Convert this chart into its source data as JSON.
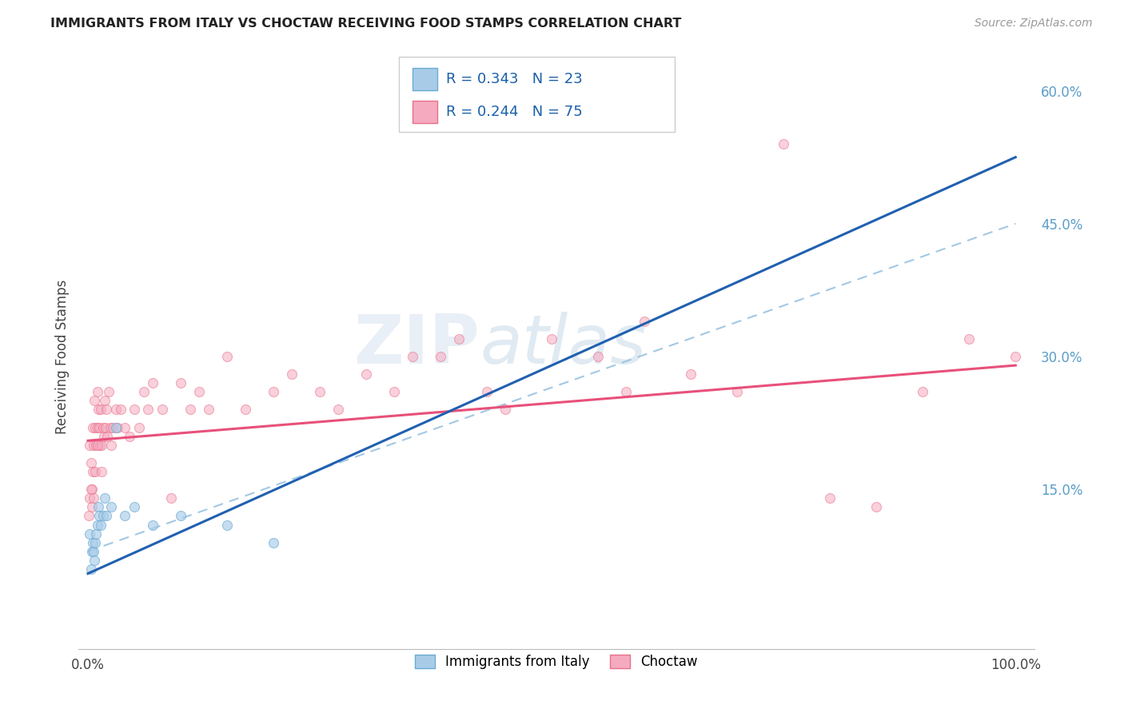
{
  "title": "IMMIGRANTS FROM ITALY VS CHOCTAW RECEIVING FOOD STAMPS CORRELATION CHART",
  "source": "Source: ZipAtlas.com",
  "ylabel": "Receiving Food Stamps",
  "xlim": [
    -1,
    102
  ],
  "ylim": [
    -3,
    63
  ],
  "xticks": [
    0,
    100
  ],
  "xtick_labels": [
    "0.0%",
    "100.0%"
  ],
  "ytick_vals_right": [
    15,
    30,
    45,
    60
  ],
  "ytick_labels_right": [
    "15.0%",
    "30.0%",
    "45.0%",
    "60.0%"
  ],
  "italy_color": "#A8CCE8",
  "italy_edge_color": "#6AAAD4",
  "choctaw_color": "#F5AABF",
  "choctaw_edge_color": "#E8708A",
  "italy_line_color": "#2060B0",
  "choctaw_line_color": "#E8507A",
  "dashed_line_color": "#92BFE0",
  "legend_italy_label": "Immigrants from Italy",
  "legend_choctaw_label": "Choctaw",
  "italy_R": 0.343,
  "italy_N": 23,
  "choctaw_R": 0.244,
  "choctaw_N": 75,
  "italy_x": [
    0.2,
    0.3,
    0.4,
    0.5,
    0.6,
    0.7,
    0.8,
    0.9,
    1.0,
    1.1,
    1.2,
    1.4,
    1.6,
    1.8,
    2.0,
    2.5,
    3.0,
    4.0,
    5.0,
    7.0,
    10.0,
    15.0,
    20.0
  ],
  "italy_y": [
    10,
    6,
    8,
    9,
    8,
    7,
    9,
    10,
    11,
    13,
    12,
    11,
    12,
    14,
    12,
    13,
    22,
    12,
    13,
    11,
    12,
    11,
    9
  ],
  "choctaw_x": [
    0.2,
    0.3,
    0.4,
    0.5,
    0.5,
    0.6,
    0.7,
    0.8,
    0.9,
    1.0,
    1.0,
    1.1,
    1.2,
    1.3,
    1.4,
    1.5,
    1.6,
    1.7,
    1.8,
    1.9,
    2.0,
    2.1,
    2.2,
    2.4,
    2.5,
    2.7,
    3.0,
    3.2,
    3.5,
    4.0,
    4.5,
    5.0,
    5.5,
    6.0,
    6.5,
    7.0,
    8.0,
    9.0,
    10.0,
    11.0,
    12.0,
    13.0,
    15.0,
    17.0,
    20.0,
    22.0,
    25.0,
    27.0,
    30.0,
    33.0,
    35.0,
    38.0,
    40.0,
    43.0,
    45.0,
    50.0,
    55.0,
    58.0,
    60.0,
    65.0,
    70.0,
    75.0,
    80.0,
    85.0,
    90.0,
    95.0,
    100.0,
    0.1,
    0.2,
    0.3,
    0.4,
    0.6,
    0.8,
    1.0,
    1.5
  ],
  "choctaw_y": [
    20,
    18,
    15,
    17,
    22,
    20,
    25,
    22,
    20,
    22,
    26,
    24,
    22,
    20,
    24,
    20,
    22,
    21,
    25,
    22,
    24,
    21,
    26,
    22,
    20,
    22,
    24,
    22,
    24,
    22,
    21,
    24,
    22,
    26,
    24,
    27,
    24,
    14,
    27,
    24,
    26,
    24,
    30,
    24,
    26,
    28,
    26,
    24,
    28,
    26,
    30,
    30,
    32,
    26,
    24,
    32,
    30,
    26,
    34,
    28,
    26,
    54,
    14,
    13,
    26,
    32,
    30,
    12,
    14,
    15,
    13,
    14,
    17,
    20,
    17
  ],
  "italy_line_intercept": 5.5,
  "italy_line_slope": 0.47,
  "choctaw_line_intercept": 20.5,
  "choctaw_line_slope": 0.085,
  "dashed_intercept": 8.0,
  "dashed_slope": 0.37,
  "background_color": "#ffffff",
  "grid_color": "#cccccc",
  "watermark_zip": "ZIP",
  "watermark_atlas": "atlas",
  "marker_size": 75,
  "italy_alpha": 0.65,
  "choctaw_alpha": 0.55
}
